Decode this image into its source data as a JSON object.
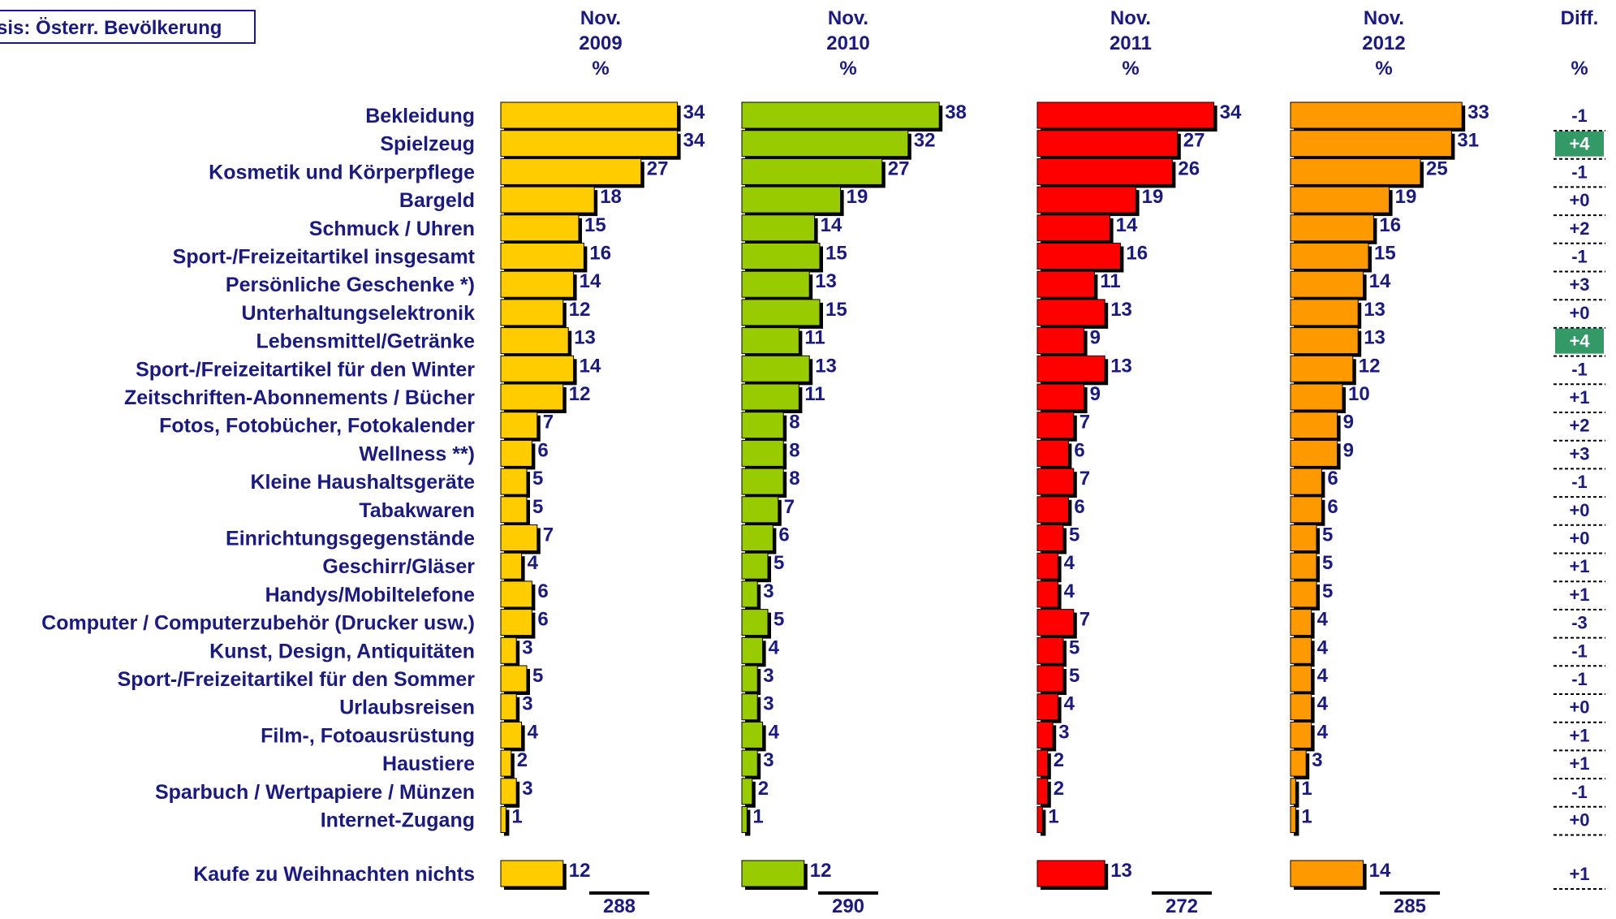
{
  "basis": "sis: Österr. Bevölkerung",
  "headers": [
    {
      "line1": "Nov.",
      "line2": "2009",
      "line3": "%"
    },
    {
      "line1": "Nov.",
      "line2": "2010",
      "line3": "%"
    },
    {
      "line1": "Nov.",
      "line2": "2011",
      "line3": "%"
    },
    {
      "line1": "Nov.",
      "line2": "2012",
      "line3": "%"
    }
  ],
  "diff_header": {
    "line1": "Diff.",
    "line3": "%"
  },
  "colors": {
    "series_2009": "#ffcc00",
    "series_2010": "#99cc00",
    "series_2011": "#ff0000",
    "series_2012": "#ff9900",
    "text": "#1a1a80",
    "highlight": "#339966"
  },
  "chart_data": {
    "type": "bar",
    "orientation": "horizontal",
    "categories": [
      "Bekleidung",
      "Spielzeug",
      "Kosmetik und Körperpflege",
      "Bargeld",
      "Schmuck / Uhren",
      "Sport-/Freizeitartikel insgesamt",
      "Persönliche Geschenke *)",
      "Unterhaltungselektronik",
      "Lebensmittel/Getränke",
      "Sport-/Freizeitartikel für den Winter",
      "Zeitschriften-Abonnements / Bücher",
      "Fotos, Fotobücher, Fotokalender",
      "Wellness **)",
      "Kleine Haushaltsgeräte",
      "Tabakwaren",
      "Einrichtungsgegenstände",
      "Geschirr/Gläser",
      "Handys/Mobiltelefone",
      "Computer / Computerzubehör (Drucker usw.)",
      "Kunst, Design, Antiquitäten",
      "Sport-/Freizeitartikel für den Sommer",
      "Urlaubsreisen",
      "Film-, Fotoausrüstung",
      "Haustiere",
      "Sparbuch / Wertpapiere / Münzen",
      "Internet-Zugang"
    ],
    "series": [
      {
        "name": "Nov. 2009",
        "values": [
          34,
          34,
          27,
          18,
          15,
          16,
          14,
          12,
          13,
          14,
          12,
          7,
          6,
          5,
          5,
          7,
          4,
          6,
          6,
          3,
          5,
          3,
          4,
          2,
          3,
          1
        ]
      },
      {
        "name": "Nov. 2010",
        "values": [
          38,
          32,
          27,
          19,
          14,
          15,
          13,
          15,
          11,
          13,
          11,
          8,
          8,
          8,
          7,
          6,
          5,
          3,
          5,
          4,
          3,
          3,
          4,
          3,
          2,
          1
        ]
      },
      {
        "name": "Nov. 2011",
        "values": [
          34,
          27,
          26,
          19,
          14,
          16,
          11,
          13,
          9,
          13,
          9,
          7,
          6,
          7,
          6,
          5,
          4,
          4,
          7,
          5,
          5,
          4,
          3,
          2,
          2,
          1
        ]
      },
      {
        "name": "Nov. 2012",
        "values": [
          33,
          31,
          25,
          19,
          16,
          15,
          14,
          13,
          13,
          12,
          10,
          9,
          9,
          6,
          6,
          5,
          5,
          5,
          4,
          4,
          4,
          4,
          4,
          3,
          1,
          1
        ]
      }
    ],
    "diff": [
      "-1",
      "+4",
      "-1",
      "+0",
      "+2",
      "-1",
      "+3",
      "+0",
      "+4",
      "-1",
      "+1",
      "+2",
      "+3",
      "-1",
      "+0",
      "+0",
      "+1",
      "+1",
      "-3",
      "-1",
      "-1",
      "+0",
      "+1",
      "+1",
      "-1",
      "+0"
    ],
    "diff_highlight": [
      false,
      true,
      false,
      false,
      false,
      false,
      false,
      false,
      true,
      false,
      false,
      false,
      false,
      false,
      false,
      false,
      false,
      false,
      false,
      false,
      false,
      false,
      false,
      false,
      false,
      false
    ],
    "extra": {
      "category": "Kaufe zu Weihnachten nichts",
      "values": [
        12,
        12,
        13,
        14
      ],
      "diff": "+1"
    },
    "totals": [
      288,
      290,
      272,
      285
    ]
  }
}
